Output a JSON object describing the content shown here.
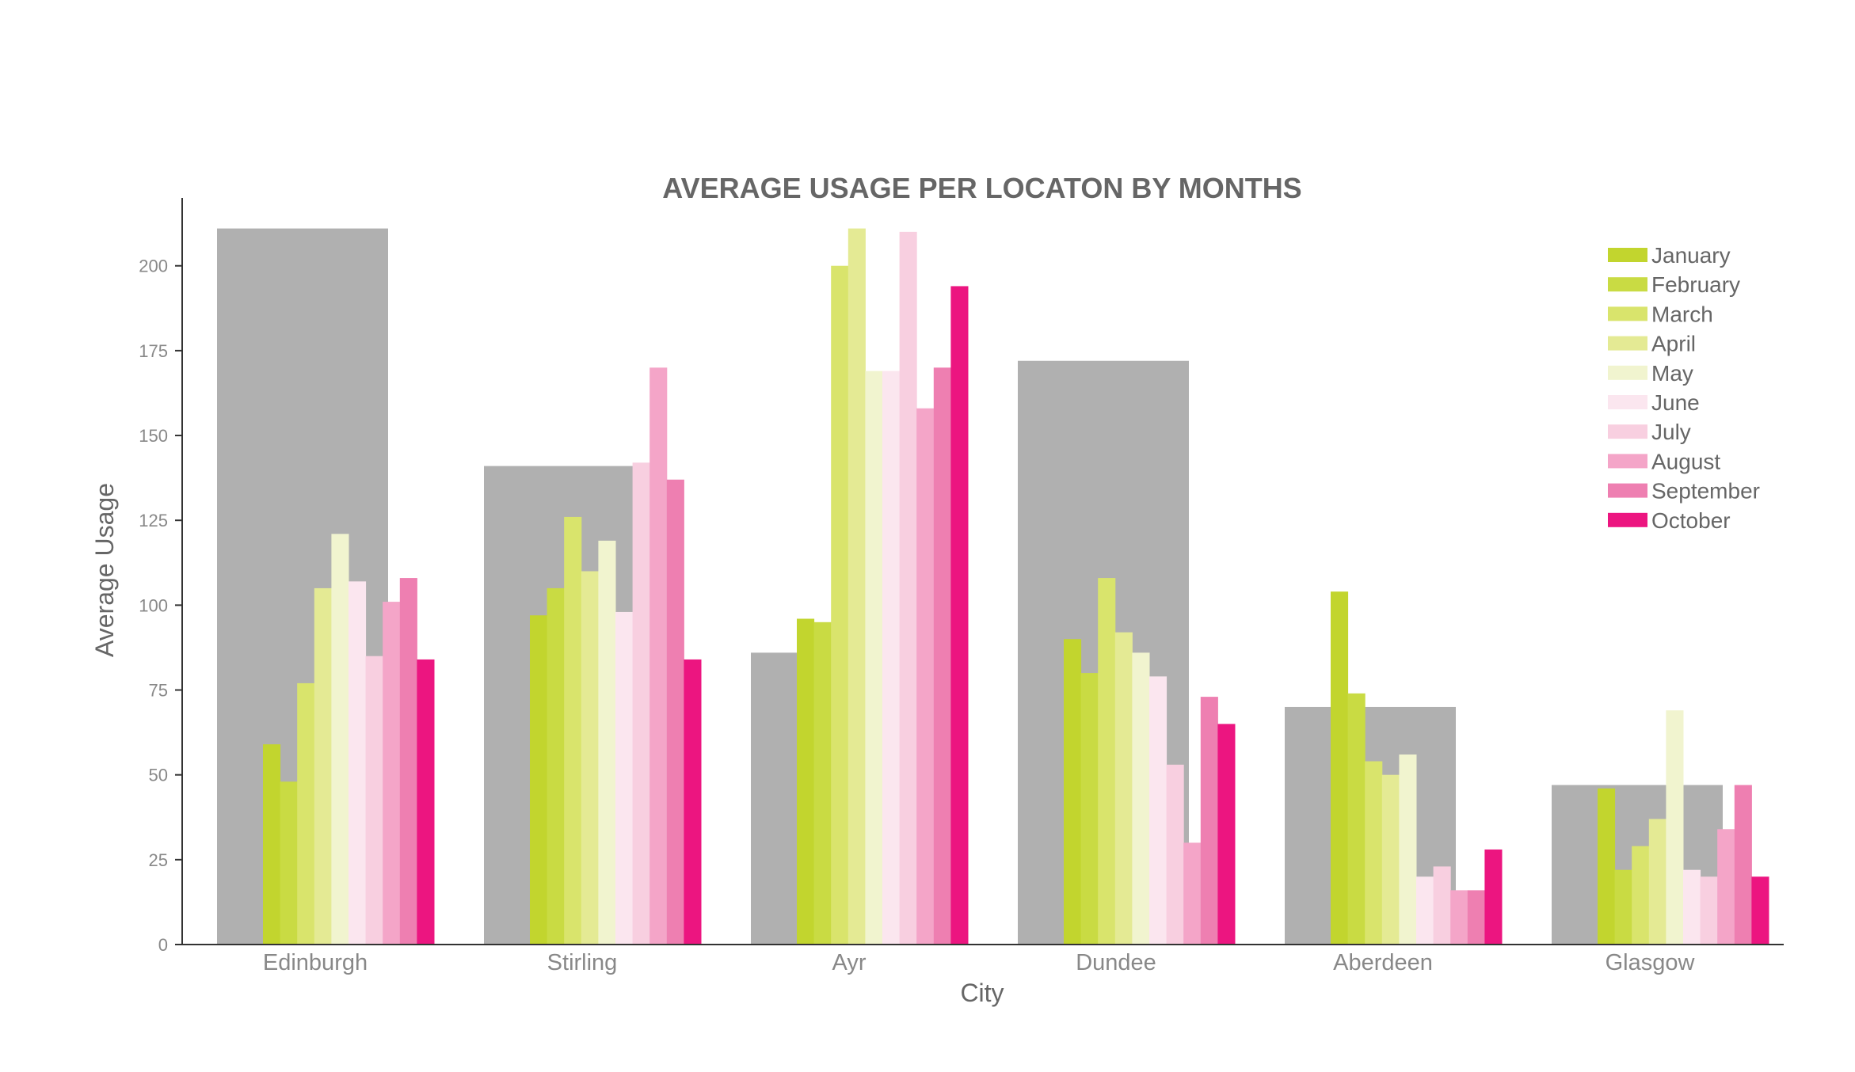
{
  "chart_data": {
    "type": "bar",
    "title": "AVERAGE USAGE PER LOCATON BY MONTHS",
    "xlabel": "City",
    "ylabel": "Average Usage",
    "ylim": [
      0,
      220
    ],
    "yticks": [
      "0",
      "25",
      "50",
      "75",
      "100",
      "125",
      "150",
      "175",
      "200"
    ],
    "categories": [
      "Edinburgh",
      "Stirling",
      "Ayr",
      "Dundee",
      "Aberdeen",
      "Glasgow"
    ],
    "background_bars": {
      "color": "#b0b0b0",
      "values": [
        211,
        141,
        86,
        172,
        70,
        47
      ]
    },
    "series": [
      {
        "name": "January",
        "color": "#c2d52e",
        "values": [
          59,
          97,
          96,
          90,
          104,
          46
        ]
      },
      {
        "name": "February",
        "color": "#c9db43",
        "values": [
          48,
          105,
          95,
          80,
          74,
          22
        ]
      },
      {
        "name": "March",
        "color": "#d9e46c",
        "values": [
          77,
          126,
          200,
          108,
          54,
          29
        ]
      },
      {
        "name": "April",
        "color": "#e4ea94",
        "values": [
          105,
          110,
          211,
          92,
          50,
          37
        ]
      },
      {
        "name": "May",
        "color": "#f1f4cf",
        "values": [
          121,
          119,
          169,
          86,
          56,
          69
        ]
      },
      {
        "name": "June",
        "color": "#fbe6ef",
        "values": [
          107,
          98,
          169,
          79,
          20,
          22
        ]
      },
      {
        "name": "July",
        "color": "#f8cfe0",
        "values": [
          85,
          142,
          210,
          53,
          23,
          20
        ]
      },
      {
        "name": "August",
        "color": "#f4a5c8",
        "values": [
          101,
          170,
          158,
          30,
          16,
          34
        ]
      },
      {
        "name": "September",
        "color": "#ee7fb1",
        "values": [
          108,
          137,
          170,
          73,
          16,
          47
        ]
      },
      {
        "name": "October",
        "color": "#ec1580",
        "values": [
          84,
          84,
          194,
          65,
          28,
          20
        ]
      }
    ],
    "legend_position": "top-right",
    "grid": false
  }
}
